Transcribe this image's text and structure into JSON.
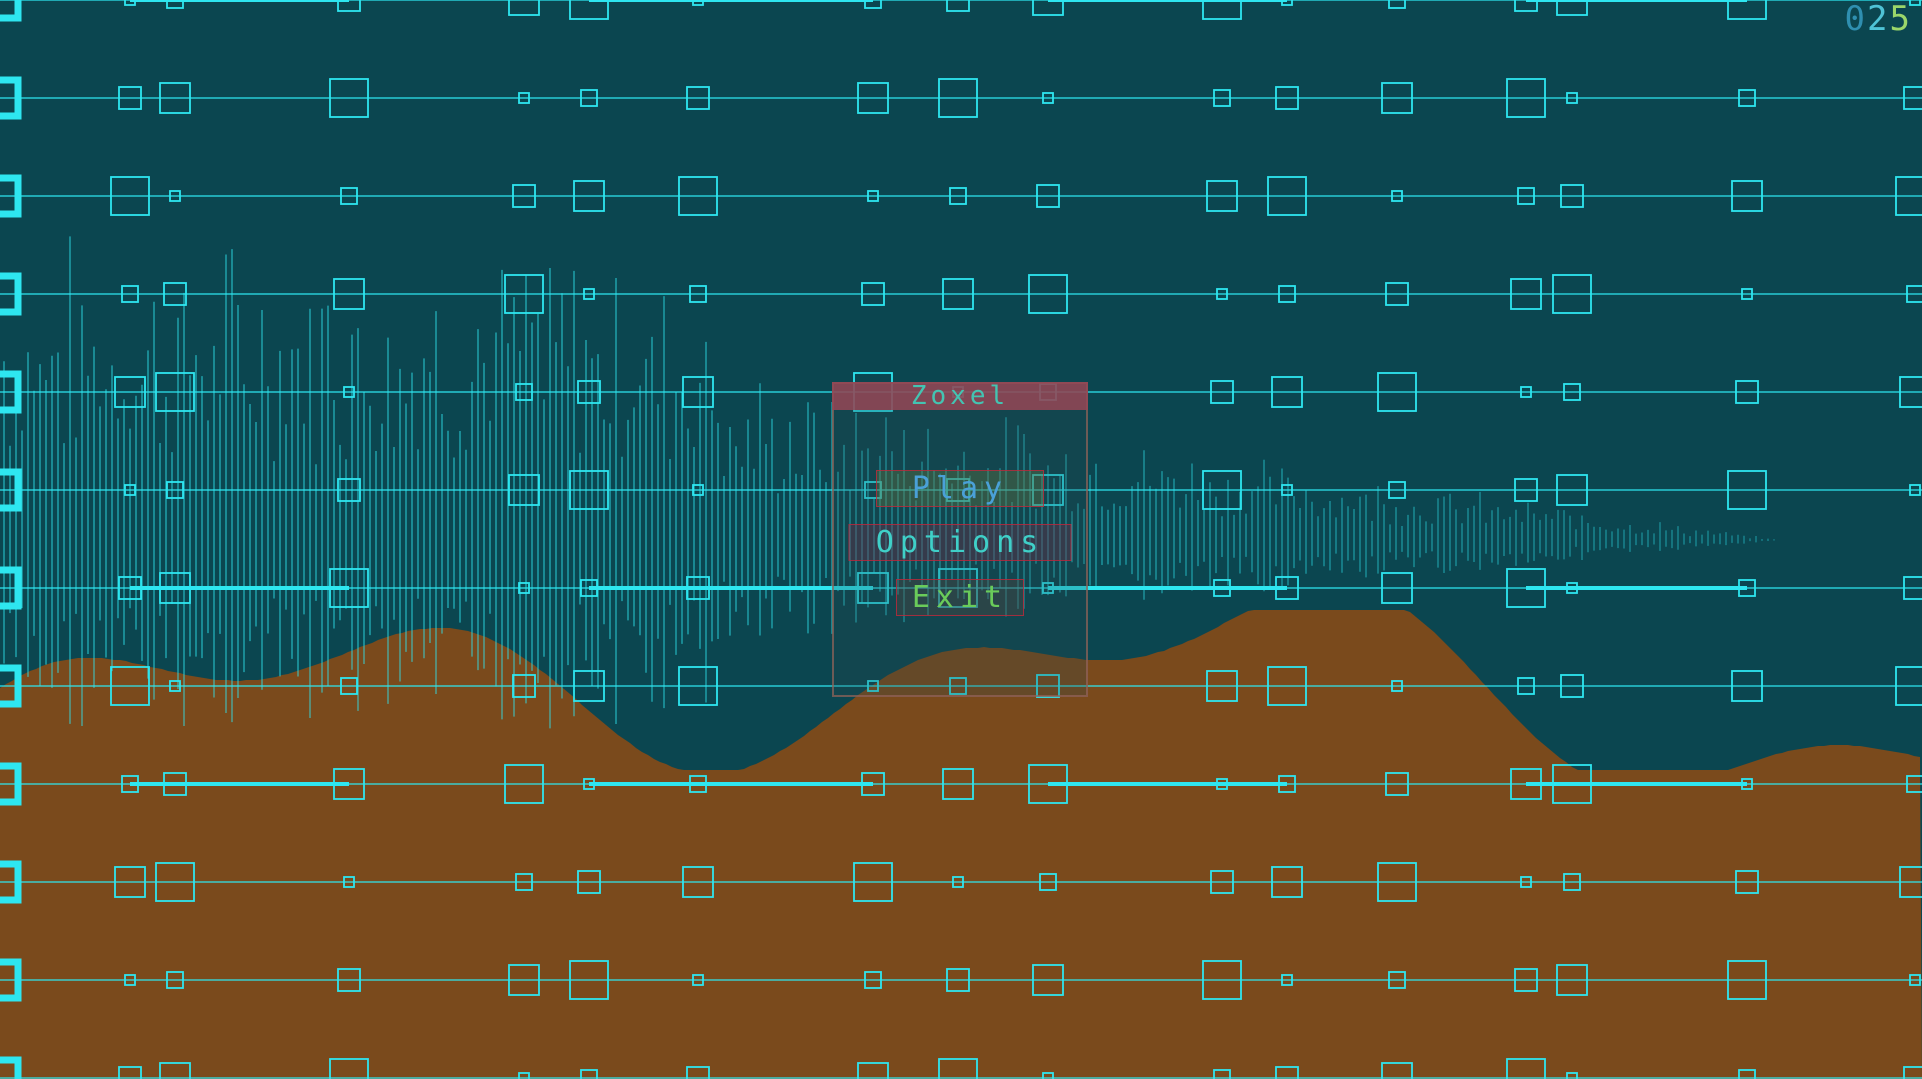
{
  "fps_counter": {
    "digit_1": "0",
    "digit_2": "2",
    "digit_3": "5"
  },
  "menu": {
    "title": "Zoxel",
    "items": [
      {
        "id": "play",
        "label": "Play"
      },
      {
        "id": "options",
        "label": "Options"
      },
      {
        "id": "exit",
        "label": "Exit"
      }
    ]
  },
  "colors": {
    "sky": "#0b4650",
    "terrain": "#7a4a1c",
    "grid_line": "#2ee6f0",
    "menu_header": "#964656",
    "menu_border": "#96645a"
  },
  "icons": {
    "grid_node": "hollow-square-icon",
    "waveform": "audio-waveform-icon"
  }
}
